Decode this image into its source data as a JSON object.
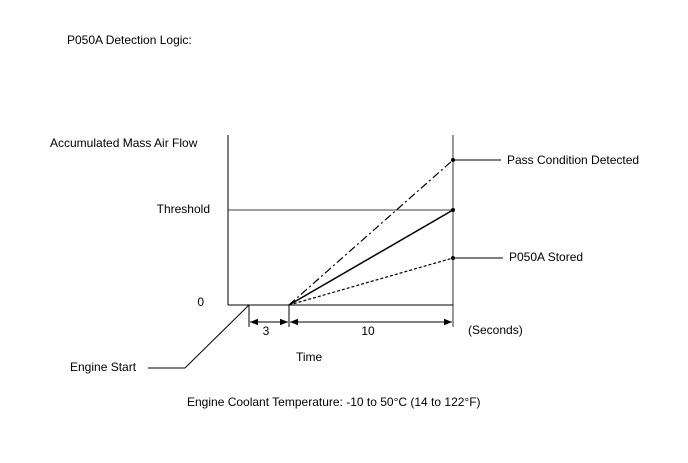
{
  "header": {
    "title": "P050A Detection Logic:"
  },
  "axes": {
    "y_label": "Accumulated Mass Air Flow",
    "threshold": "Threshold",
    "origin": "0",
    "x_label": "Time",
    "unit": "(Seconds)"
  },
  "intervals": [
    "3",
    "10"
  ],
  "callouts": {
    "engine_start": "Engine Start",
    "pass": "Pass Condition Detected",
    "stored": "P050A Stored"
  },
  "footer": {
    "note": "Engine Coolant Temperature: -10 to 50°C (14 to 122°F)"
  }
}
